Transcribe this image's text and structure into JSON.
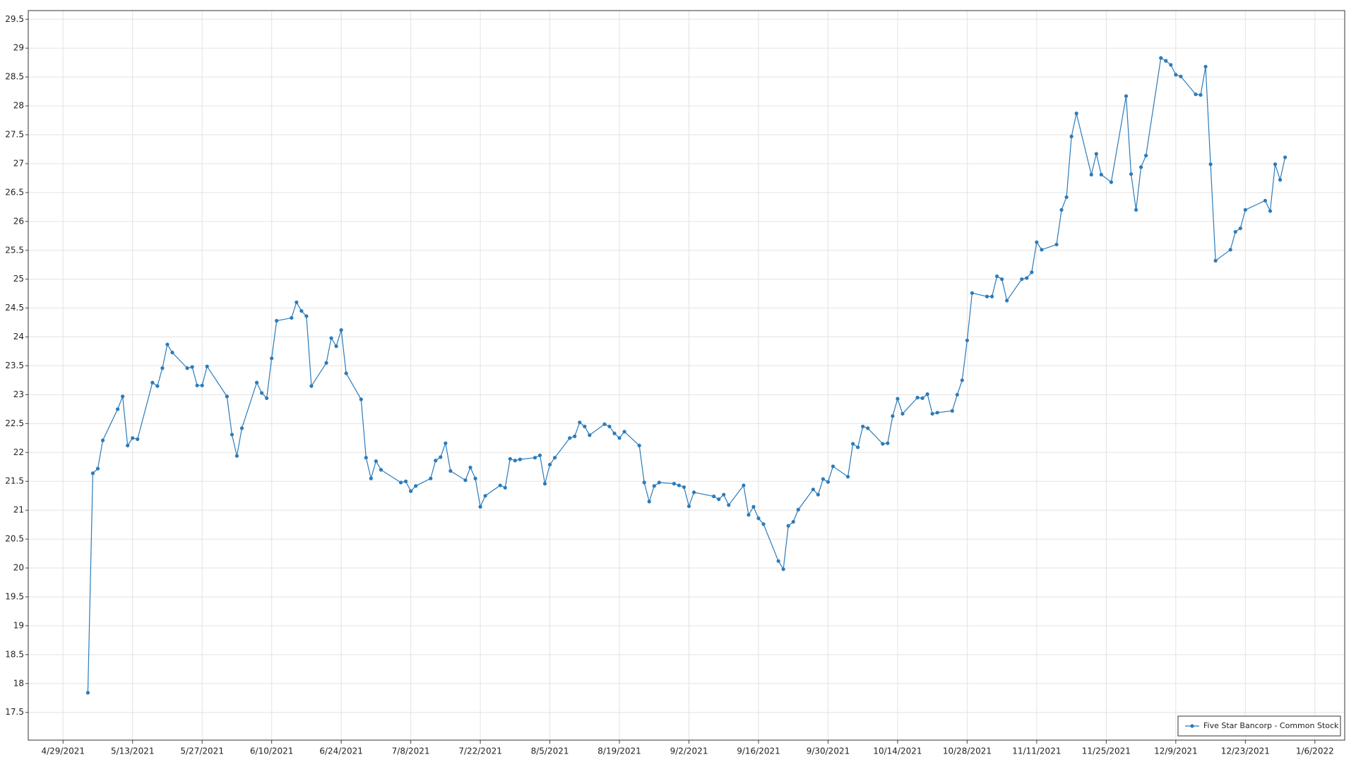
{
  "chart_data": {
    "type": "line",
    "x": [
      "5/4/2021",
      "5/5/2021",
      "5/6/2021",
      "5/7/2021",
      "5/10/2021",
      "5/11/2021",
      "5/12/2021",
      "5/13/2021",
      "5/14/2021",
      "5/17/2021",
      "5/18/2021",
      "5/19/2021",
      "5/20/2021",
      "5/21/2021",
      "5/24/2021",
      "5/25/2021",
      "5/26/2021",
      "5/27/2021",
      "5/28/2021",
      "6/1/2021",
      "6/2/2021",
      "6/3/2021",
      "6/4/2021",
      "6/7/2021",
      "6/8/2021",
      "6/9/2021",
      "6/10/2021",
      "6/11/2021",
      "6/14/2021",
      "6/15/2021",
      "6/16/2021",
      "6/17/2021",
      "6/18/2021",
      "6/21/2021",
      "6/22/2021",
      "6/23/2021",
      "6/24/2021",
      "6/25/2021",
      "6/28/2021",
      "6/29/2021",
      "6/30/2021",
      "7/1/2021",
      "7/2/2021",
      "7/6/2021",
      "7/7/2021",
      "7/8/2021",
      "7/9/2021",
      "7/12/2021",
      "7/13/2021",
      "7/14/2021",
      "7/15/2021",
      "7/16/2021",
      "7/19/2021",
      "7/20/2021",
      "7/21/2021",
      "7/22/2021",
      "7/23/2021",
      "7/26/2021",
      "7/27/2021",
      "7/28/2021",
      "7/29/2021",
      "7/30/2021",
      "8/2/2021",
      "8/3/2021",
      "8/4/2021",
      "8/5/2021",
      "8/6/2021",
      "8/9/2021",
      "8/10/2021",
      "8/11/2021",
      "8/12/2021",
      "8/13/2021",
      "8/16/2021",
      "8/17/2021",
      "8/18/2021",
      "8/19/2021",
      "8/20/2021",
      "8/23/2021",
      "8/24/2021",
      "8/25/2021",
      "8/26/2021",
      "8/27/2021",
      "8/30/2021",
      "8/31/2021",
      "9/1/2021",
      "9/2/2021",
      "9/3/2021",
      "9/7/2021",
      "9/8/2021",
      "9/9/2021",
      "9/10/2021",
      "9/13/2021",
      "9/14/2021",
      "9/15/2021",
      "9/16/2021",
      "9/17/2021",
      "9/20/2021",
      "9/21/2021",
      "9/22/2021",
      "9/23/2021",
      "9/24/2021",
      "9/27/2021",
      "9/28/2021",
      "9/29/2021",
      "9/30/2021",
      "10/1/2021",
      "10/4/2021",
      "10/5/2021",
      "10/6/2021",
      "10/7/2021",
      "10/8/2021",
      "10/11/2021",
      "10/12/2021",
      "10/13/2021",
      "10/14/2021",
      "10/15/2021",
      "10/18/2021",
      "10/19/2021",
      "10/20/2021",
      "10/21/2021",
      "10/22/2021",
      "10/25/2021",
      "10/26/2021",
      "10/27/2021",
      "10/28/2021",
      "10/29/2021",
      "11/1/2021",
      "11/2/2021",
      "11/3/2021",
      "11/4/2021",
      "11/5/2021",
      "11/8/2021",
      "11/9/2021",
      "11/10/2021",
      "11/11/2021",
      "11/12/2021",
      "11/15/2021",
      "11/16/2021",
      "11/17/2021",
      "11/18/2021",
      "11/19/2021",
      "11/22/2021",
      "11/23/2021",
      "11/24/2021",
      "11/26/2021",
      "11/29/2021",
      "11/30/2021",
      "12/1/2021",
      "12/2/2021",
      "12/3/2021",
      "12/6/2021",
      "12/7/2021",
      "12/8/2021",
      "12/9/2021",
      "12/10/2021",
      "12/13/2021",
      "12/14/2021",
      "12/15/2021",
      "12/16/2021",
      "12/17/2021",
      "12/20/2021",
      "12/21/2021",
      "12/22/2021",
      "12/23/2021",
      "12/27/2021",
      "12/28/2021",
      "12/29/2021",
      "12/30/2021",
      "12/31/2021"
    ],
    "series": [
      {
        "name": "Five Star Bancorp - Common Stock",
        "color": "#2b7bba",
        "values": [
          17.84,
          21.64,
          21.72,
          22.21,
          22.75,
          22.97,
          22.12,
          22.25,
          22.23,
          23.21,
          23.15,
          23.46,
          23.87,
          23.73,
          23.46,
          23.48,
          23.16,
          23.16,
          23.49,
          22.97,
          22.31,
          21.94,
          22.42,
          23.21,
          23.03,
          22.94,
          23.63,
          24.28,
          24.33,
          24.6,
          24.45,
          24.36,
          23.15,
          23.55,
          23.98,
          23.84,
          24.12,
          23.37,
          22.92,
          21.91,
          21.55,
          21.85,
          21.7,
          21.48,
          21.5,
          21.33,
          21.42,
          21.55,
          21.86,
          21.92,
          22.16,
          21.68,
          21.52,
          21.74,
          21.55,
          21.06,
          21.25,
          21.43,
          21.39,
          21.89,
          21.86,
          21.88,
          21.91,
          21.95,
          21.46,
          21.79,
          21.91,
          22.25,
          22.28,
          22.52,
          22.45,
          22.3,
          22.49,
          22.45,
          22.33,
          22.25,
          22.36,
          22.12,
          21.48,
          21.15,
          21.42,
          21.48,
          21.46,
          21.43,
          21.4,
          21.07,
          21.31,
          21.24,
          21.19,
          21.27,
          21.09,
          21.43,
          20.92,
          21.06,
          20.86,
          20.76,
          20.12,
          19.98,
          20.73,
          20.8,
          21.01,
          21.36,
          21.27,
          21.54,
          21.49,
          21.76,
          21.58,
          22.15,
          22.09,
          22.45,
          22.42,
          22.15,
          22.16,
          22.63,
          22.93,
          22.67,
          22.95,
          22.94,
          23.01,
          22.67,
          22.69,
          22.72,
          23.0,
          23.25,
          23.94,
          24.76,
          24.7,
          24.7,
          25.05,
          25.0,
          24.63,
          25.0,
          25.02,
          25.12,
          25.64,
          25.51,
          25.6,
          26.2,
          26.42,
          27.47,
          27.87,
          26.81,
          27.17,
          26.81,
          26.68,
          28.17,
          26.82,
          26.2,
          26.94,
          27.14,
          28.83,
          28.78,
          28.71,
          28.54,
          28.51,
          28.2,
          28.19,
          28.68,
          26.99,
          25.32,
          25.51,
          25.82,
          25.88,
          26.2,
          26.36,
          26.18,
          26.99,
          26.72,
          27.11
        ]
      }
    ],
    "xlim": [
      "4/22/2021",
      "1/12/2022"
    ],
    "xticks": [
      "4/29/2021",
      "5/13/2021",
      "5/27/2021",
      "6/10/2021",
      "6/24/2021",
      "7/8/2021",
      "7/22/2021",
      "8/5/2021",
      "8/19/2021",
      "9/2/2021",
      "9/16/2021",
      "9/30/2021",
      "10/14/2021",
      "10/28/2021",
      "11/11/2021",
      "11/25/2021",
      "12/9/2021",
      "12/23/2021",
      "1/6/2022"
    ],
    "ylim": [
      17.02,
      29.65
    ],
    "yticks": [
      17.5,
      18,
      18.5,
      19,
      19.5,
      20,
      20.5,
      21,
      21.5,
      22,
      22.5,
      23,
      23.5,
      24,
      24.5,
      25,
      25.5,
      26,
      26.5,
      27,
      27.5,
      28,
      28.5,
      29,
      29.5
    ],
    "grid": true,
    "markers": true,
    "legend": "lower right"
  }
}
